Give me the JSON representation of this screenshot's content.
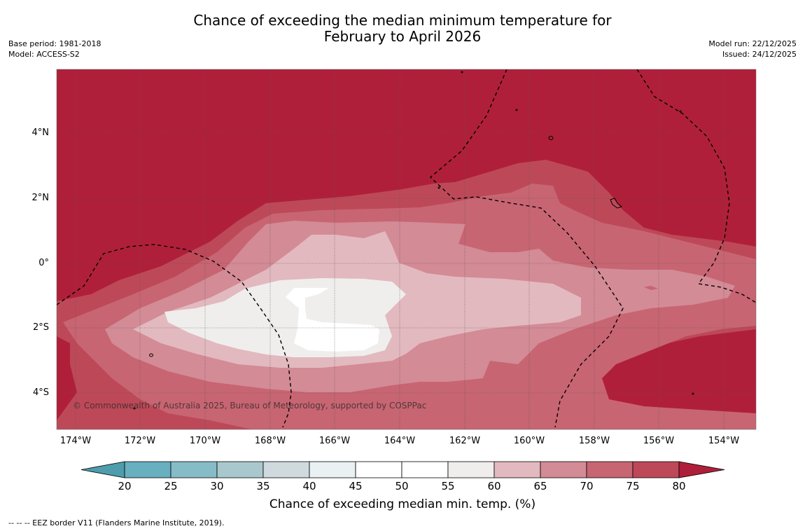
{
  "title": {
    "line1": "Chance of exceeding the median minimum temperature for",
    "line2": "February to April 2026"
  },
  "meta": {
    "base_period": "Base period: 1981-2018",
    "model": "Model: ACCESS-S2",
    "model_run": "Model run: 22/12/2025",
    "issued": "Issued: 24/12/2025"
  },
  "map": {
    "latitude_labels": [
      "4°N",
      "2°N",
      "0°",
      "2°S",
      "4°S"
    ],
    "longitude_labels": [
      "174°W",
      "172°W",
      "170°W",
      "168°W",
      "166°W",
      "164°W",
      "162°W",
      "160°W",
      "158°W",
      "156°W",
      "154°W"
    ],
    "copyright": "© Commonwealth of Australia 2025, Bureau of Meteorology, supported by COSPPac"
  },
  "colorbar": {
    "tick_labels": [
      "20",
      "25",
      "30",
      "35",
      "40",
      "45",
      "50",
      "55",
      "60",
      "65",
      "70",
      "75",
      "80"
    ],
    "colors": [
      "#4d9dad",
      "#68afbf",
      "#86bcc7",
      "#a9c8cd",
      "#cfdade",
      "#eaf1f2",
      "#ffffff",
      "#ffffff",
      "#efeeec",
      "#e2b9bf",
      "#d38b96",
      "#c86572",
      "#bd4958",
      "#b01f39"
    ],
    "title": "Chance of exceeding median min. temp. (%)"
  },
  "eez_legend": "--  --  -- EEZ border V11 (Flanders Marine Institute, 2019)."
}
